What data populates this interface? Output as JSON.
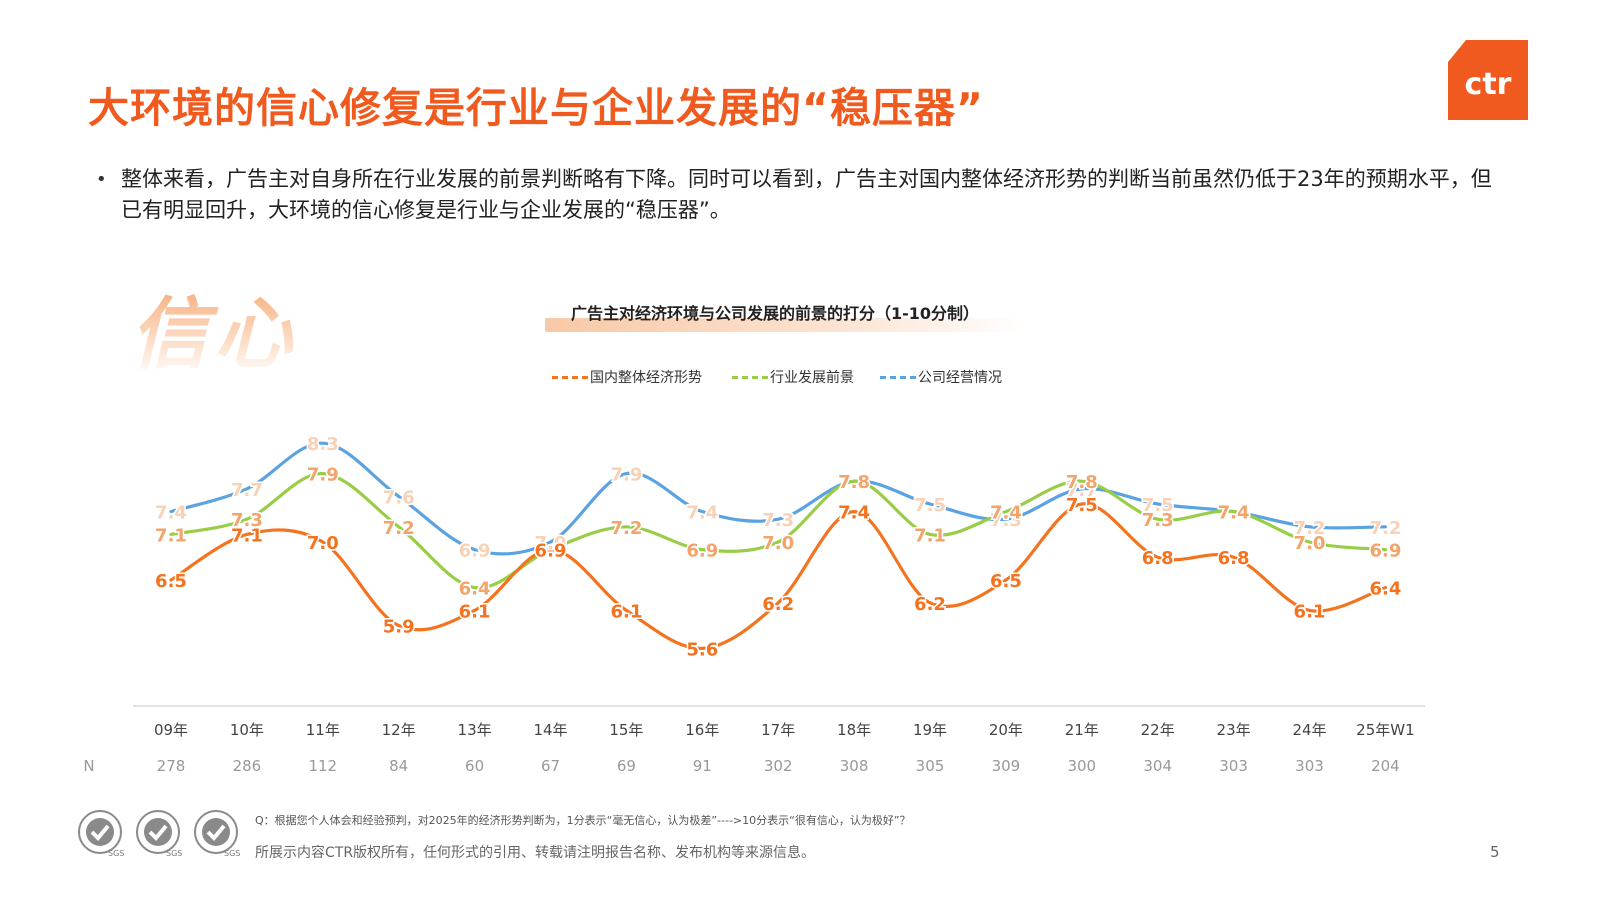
{
  "title": "大环境的信心修复是行业与企业发展的“稳压器”",
  "logo": {
    "text": "ctr",
    "registered": "®",
    "color": "#F05A1E"
  },
  "bullet": {
    "dot": "•",
    "text": "整体来看，广告主对自身所在行业发展的前景判断略有下降。同时可以看到，广告主对国内整体经济形势的判断当前虽然仍低于23年的预期水平，但已有明显回升，大环境的信心修复是行业与企业发展的“稳压器”。"
  },
  "decor_text": "信心",
  "chart_data": {
    "type": "line",
    "title": "广告主对经济环境与公司发展的前景的打分（1-10分制）",
    "categories": [
      "09年",
      "10年",
      "11年",
      "12年",
      "13年",
      "14年",
      "15年",
      "16年",
      "17年",
      "18年",
      "19年",
      "20年",
      "21年",
      "22年",
      "23年",
      "24年",
      "25年W1"
    ],
    "series": [
      {
        "name": "国内整体经济形势",
        "color": "#F4731F",
        "values": [
          6.5,
          7.1,
          7.0,
          5.9,
          6.1,
          6.9,
          6.1,
          5.6,
          6.2,
          7.4,
          6.2,
          6.5,
          7.5,
          6.8,
          6.8,
          6.1,
          6.4
        ]
      },
      {
        "name": "行业发展前景",
        "color": "#9ACD47",
        "values": [
          7.1,
          7.3,
          7.9,
          7.2,
          6.4,
          6.9,
          7.2,
          6.9,
          7.0,
          7.8,
          7.1,
          7.4,
          7.8,
          7.3,
          7.4,
          7.0,
          6.9
        ]
      },
      {
        "name": "公司经营情况",
        "color": "#5BA3E0",
        "values": [
          7.4,
          7.7,
          8.3,
          7.6,
          6.9,
          7.0,
          7.9,
          7.4,
          7.3,
          7.8,
          7.5,
          7.3,
          7.7,
          7.5,
          7.4,
          7.2,
          7.2
        ]
      }
    ],
    "n_label": "N",
    "n_values": [
      278,
      286,
      112,
      84,
      60,
      67,
      69,
      91,
      302,
      308,
      305,
      309,
      300,
      304,
      303,
      303,
      204
    ],
    "legend_position": "top",
    "grid": false
  },
  "footnote": "Q：根据您个人体会和经验预判，对2025年的经济形势判断为，1分表示“毫无信心，认为极差”---->10分表示“很有信心，认为极好”？",
  "copyright": "所展示内容CTR版权所有，任何形式的引用、转载请注明报告名称、发布机构等来源信息。",
  "page_number": "5",
  "badges": [
    {
      "label": "SGS",
      "color": "#777777"
    },
    {
      "label": "SGS",
      "color": "#777777"
    },
    {
      "label": "SGS",
      "color": "#777777"
    }
  ]
}
